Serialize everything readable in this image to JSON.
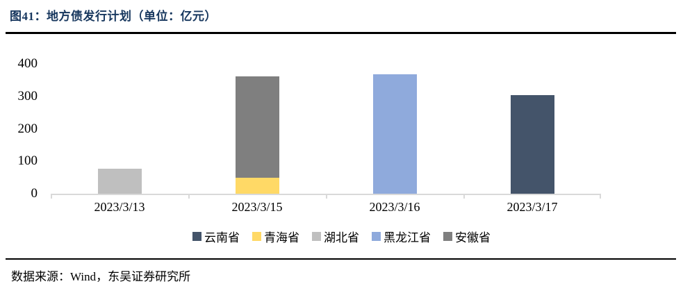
{
  "figure": {
    "title": "图41：地方债发行计划（单位：亿元）",
    "source": "数据来源：Wind，东吴证券研究所"
  },
  "colors": {
    "title_text": "#17375E",
    "rule": "#000000",
    "axis_line": "#D9D9D9"
  },
  "chart_data": {
    "type": "bar",
    "stacked": true,
    "title": "地方债发行计划",
    "unit": "亿元",
    "categories": [
      "2023/3/13",
      "2023/3/15",
      "2023/3/16",
      "2023/3/17"
    ],
    "series": [
      {
        "name": "云南省",
        "color": "#44546A",
        "values": [
          0,
          0,
          0,
          304
        ]
      },
      {
        "name": "青海省",
        "color": "#FFD966",
        "values": [
          0,
          49,
          0,
          0
        ]
      },
      {
        "name": "湖北省",
        "color": "#BFBFBF",
        "values": [
          76,
          0,
          0,
          0
        ]
      },
      {
        "name": "黑龙江省",
        "color": "#8FAADC",
        "values": [
          0,
          0,
          368,
          0
        ]
      },
      {
        "name": "安徽省",
        "color": "#7F7F7F",
        "values": [
          0,
          312,
          0,
          0
        ]
      }
    ],
    "ylim": [
      0,
      400
    ],
    "yticks": [
      0,
      100,
      200,
      300,
      400
    ],
    "grid": false,
    "legend_position": "bottom"
  }
}
